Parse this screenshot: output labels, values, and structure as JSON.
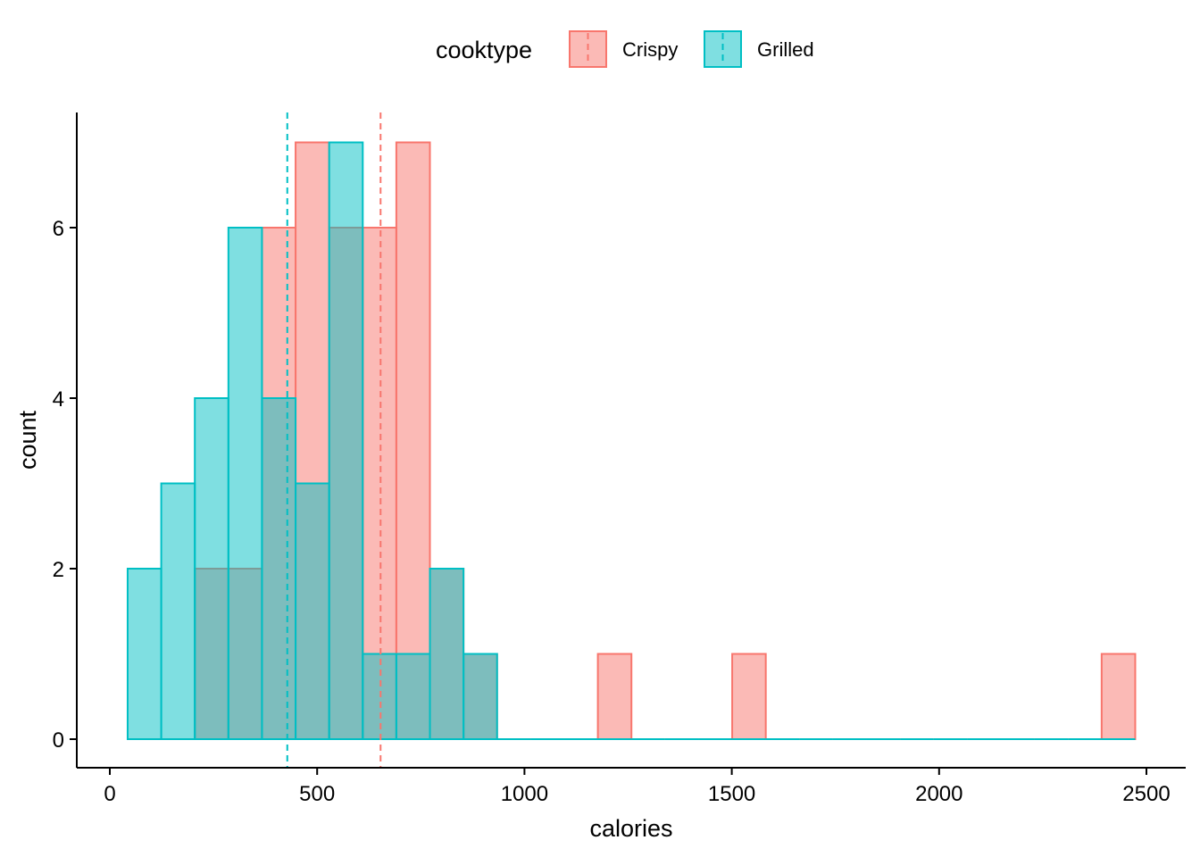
{
  "chart_data": {
    "type": "bar",
    "subtype": "overlaid-histogram",
    "title": "",
    "xlabel": "calories",
    "ylabel": "count",
    "xlim": [
      0,
      2600
    ],
    "ylim": [
      0,
      7
    ],
    "xticks": [
      0,
      500,
      1000,
      1500,
      2000,
      2500
    ],
    "yticks": [
      0,
      2,
      4,
      6
    ],
    "grid": false,
    "legend": {
      "title": "cooktype",
      "position": "top"
    },
    "bin_edges": [
      43,
      124,
      205,
      286,
      367,
      448,
      529,
      610,
      691,
      772,
      853,
      934,
      1015,
      1096,
      1177,
      1258,
      1339,
      1420,
      1501,
      1582,
      1663,
      1744,
      1825,
      1906,
      1987,
      2068,
      2149,
      2230,
      2311,
      2392,
      2473
    ],
    "series": [
      {
        "name": "Crispy",
        "fill": "#F8766D",
        "stroke": "#F8766D",
        "mean": 653,
        "counts": [
          0,
          0,
          2,
          2,
          6,
          7,
          6,
          6,
          7,
          2,
          1,
          0,
          0,
          0,
          1,
          0,
          0,
          0,
          1,
          0,
          0,
          0,
          0,
          0,
          0,
          0,
          0,
          0,
          0,
          1
        ]
      },
      {
        "name": "Grilled",
        "fill": "#00BFC4",
        "stroke": "#00BFC4",
        "mean": 428,
        "counts": [
          2,
          3,
          4,
          6,
          4,
          3,
          7,
          1,
          1,
          2,
          1,
          0,
          0,
          0,
          0,
          0,
          0,
          0,
          0,
          0,
          0,
          0,
          0,
          0,
          0,
          0,
          0,
          0,
          0,
          0
        ]
      }
    ]
  }
}
